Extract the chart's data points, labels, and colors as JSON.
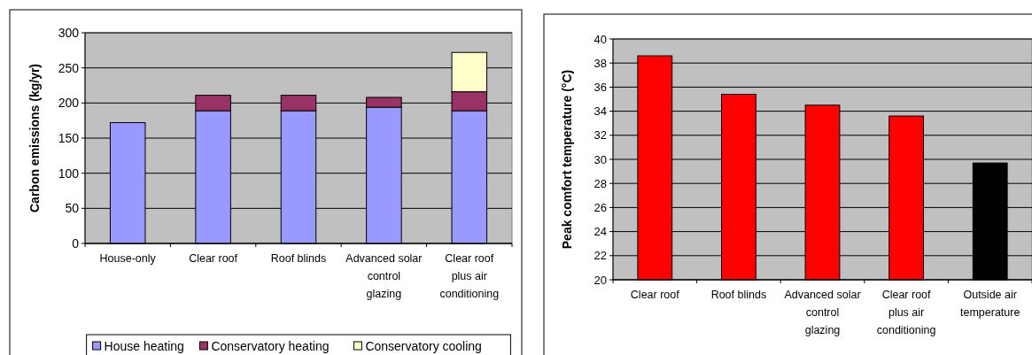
{
  "chart_data": [
    {
      "type": "bar",
      "stacked": true,
      "ylabel": "Carbon emissions (kg/yr)",
      "categories": [
        "House-only",
        "Clear roof",
        "Roof blinds",
        "Advanced solar control glazing",
        "Clear roof plus air conditioning"
      ],
      "ylim": [
        0,
        300
      ],
      "yticks": [
        0,
        50,
        100,
        150,
        200,
        250,
        300
      ],
      "grid": "y",
      "legend": "bottom",
      "series": [
        {
          "name": "House heating",
          "color": "#9999ff",
          "values": [
            172,
            189,
            189,
            194,
            189
          ]
        },
        {
          "name": "Conservatory heating",
          "color": "#993366",
          "values": [
            0,
            22,
            22,
            14,
            27
          ]
        },
        {
          "name": "Conservatory cooling",
          "color": "#ffffcc",
          "values": [
            0,
            0,
            0,
            0,
            56
          ]
        }
      ]
    },
    {
      "type": "bar",
      "ylabel": "Peak comfort temperature (°C)",
      "categories": [
        "Clear roof",
        "Roof blinds",
        "Advanced solar control glazing",
        "Clear roof plus air conditioning",
        "Outside air temperature"
      ],
      "values": [
        38.6,
        35.4,
        34.5,
        33.6,
        29.7
      ],
      "colors": [
        "#ff0000",
        "#ff0000",
        "#ff0000",
        "#ff0000",
        "#000000"
      ],
      "ylim": [
        20,
        40
      ],
      "yticks": [
        20,
        22,
        24,
        26,
        28,
        30,
        32,
        34,
        36,
        38,
        40
      ],
      "grid": "y"
    }
  ]
}
